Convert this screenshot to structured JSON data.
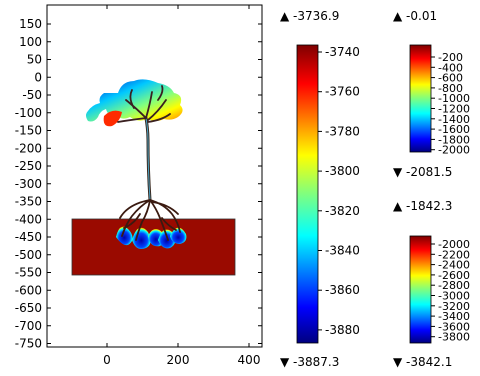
{
  "plot": {
    "y_ticks": [
      "150",
      "100",
      "50",
      "0",
      "-50",
      "-100",
      "-150",
      "-200",
      "-250",
      "-300",
      "-350",
      "-400",
      "-450",
      "-500",
      "-550",
      "-600",
      "-650",
      "-700",
      "-750"
    ],
    "x_ticks": [
      "0",
      "200",
      "400"
    ]
  },
  "colorbars": [
    {
      "max_label": "▲ -3736.9",
      "min_label": "▼ -3887.3",
      "ticks": [
        "-3740",
        "-3760",
        "-3780",
        "-3800",
        "-3820",
        "-3840",
        "-3860",
        "-3880"
      ]
    },
    {
      "max_label": "▲ -0.01",
      "min_label": "▼ -2081.5",
      "ticks": [
        "-200",
        "-400",
        "-600",
        "-800",
        "-1000",
        "-1200",
        "-1400",
        "-1600",
        "-1800",
        "-2000"
      ]
    },
    {
      "max_label": "▲ -1842.3",
      "min_label": "▼ -3842.1",
      "ticks": [
        "-2000",
        "-2200",
        "-2400",
        "-2600",
        "-2800",
        "-3000",
        "-3200",
        "-3400",
        "-3600",
        "-3800"
      ]
    }
  ],
  "colors": {
    "soil": "#9a0a00",
    "colormap": "jet"
  }
}
